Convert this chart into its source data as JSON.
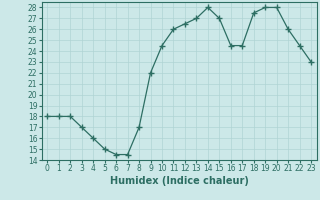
{
  "xlabel": "Humidex (Indice chaleur)",
  "x": [
    0,
    1,
    2,
    3,
    4,
    5,
    6,
    7,
    8,
    9,
    10,
    11,
    12,
    13,
    14,
    15,
    16,
    17,
    18,
    19,
    20,
    21,
    22,
    23
  ],
  "y": [
    18,
    18,
    18,
    17,
    16,
    15,
    14.5,
    14.5,
    17,
    22,
    24.5,
    26,
    26.5,
    27,
    28,
    27,
    24.5,
    24.5,
    27.5,
    28,
    28,
    26,
    24.5,
    23
  ],
  "line_color": "#2d6e63",
  "marker": "+",
  "marker_size": 4,
  "bg_color": "#cce8e8",
  "grid_color": "#b0d4d4",
  "ylim": [
    14,
    28.5
  ],
  "yticks": [
    14,
    15,
    16,
    17,
    18,
    19,
    20,
    21,
    22,
    23,
    24,
    25,
    26,
    27,
    28
  ],
  "xticks": [
    0,
    1,
    2,
    3,
    4,
    5,
    6,
    7,
    8,
    9,
    10,
    11,
    12,
    13,
    14,
    15,
    16,
    17,
    18,
    19,
    20,
    21,
    22,
    23
  ],
  "tick_fontsize": 5.5,
  "label_fontsize": 7
}
